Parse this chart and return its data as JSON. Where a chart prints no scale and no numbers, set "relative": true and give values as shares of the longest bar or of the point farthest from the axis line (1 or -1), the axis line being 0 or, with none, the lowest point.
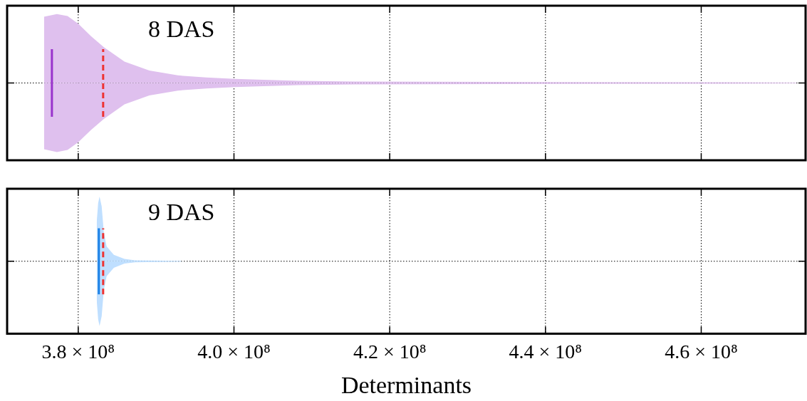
{
  "chart_data": [
    {
      "type": "area",
      "relative": true,
      "annotations": [
        "8 DAS"
      ],
      "tick_labels": false,
      "grid": true,
      "legend": false,
      "xlim": [
        370870000,
        473400000
      ],
      "xticks": [
        380000000,
        400000000,
        420000000,
        440000000,
        460000000
      ],
      "series": [
        {
          "color": "#dfc0ee",
          "x": [
            375600000,
            377260000,
            378630000,
            380000000,
            381640000,
            383290000,
            385940000,
            389130000,
            392790000,
            396440000,
            400090000,
            408310000,
            415620000,
            433880000,
            461280000,
            472240000
          ],
          "values": [
            0.96,
            1,
            0.97,
            0.86,
            0.68,
            0.52,
            0.31,
            0.18,
            0.11,
            0.08,
            0.06,
            0.03,
            0.02,
            0.015,
            0.01,
            0.005
          ]
        },
        {
          "color": "#dfc0ee",
          "x": [
            375600000,
            377260000,
            378630000,
            380000000,
            381640000,
            383290000,
            385940000,
            389130000,
            392790000,
            396440000,
            400090000,
            408310000,
            415620000,
            433880000,
            461280000,
            472240000
          ],
          "values": [
            -0.96,
            -1,
            -0.97,
            -0.86,
            -0.68,
            -0.52,
            -0.31,
            -0.18,
            -0.11,
            -0.08,
            -0.06,
            -0.03,
            -0.02,
            -0.015,
            -0.01,
            -0.005
          ]
        },
        {
          "type": "line",
          "color": "#9933cc",
          "line_style": "solid",
          "x": [
            376620000,
            376620000
          ],
          "values": [
            -0.49,
            0.49
          ]
        },
        {
          "type": "line",
          "color": "#ee3333",
          "line_style": "dashed",
          "x": [
            383200000,
            383200000
          ],
          "values": [
            -0.49,
            0.49
          ]
        }
      ]
    },
    {
      "type": "area",
      "relative": true,
      "annotations": [
        "9 DAS"
      ],
      "tick_labels": "x",
      "grid": true,
      "legend": false,
      "xlabel": "Determinants",
      "xlim": [
        370870000,
        473400000
      ],
      "xticks": [
        {
          "value": 380000000,
          "label": "3.8 × 10⁸"
        },
        {
          "value": 400000000,
          "label": "4.0 × 10⁸"
        },
        {
          "value": 420000000,
          "label": "4.2 × 10⁸"
        },
        {
          "value": 440000000,
          "label": "4.4 × 10⁸"
        },
        {
          "value": 460000000,
          "label": "4.6 × 10⁸"
        }
      ],
      "series": [
        {
          "color": "#bfdfff",
          "x": [
            382370000,
            382560000,
            382740000,
            383010000,
            383290000,
            383650000,
            384570000,
            385940000,
            387310000,
            393240000
          ],
          "values": [
            0.6,
            0.9,
            1,
            0.85,
            0.44,
            0.23,
            0.1,
            0.035,
            0.015,
            0.005
          ]
        },
        {
          "color": "#bfdfff",
          "x": [
            382370000,
            382560000,
            382740000,
            383010000,
            383290000,
            383650000,
            384570000,
            385940000,
            387310000,
            393240000
          ],
          "values": [
            -0.6,
            -0.9,
            -1,
            -0.85,
            -0.44,
            -0.23,
            -0.1,
            -0.035,
            -0.015,
            -0.005
          ]
        },
        {
          "type": "line",
          "color": "#1a80e6",
          "line_style": "solid",
          "x": [
            382650000,
            382650000
          ],
          "values": [
            -0.51,
            0.51
          ]
        },
        {
          "type": "line",
          "color": "#ee3333",
          "line_style": "dashed",
          "x": [
            383200000,
            383200000
          ],
          "values": [
            -0.51,
            0.51
          ]
        }
      ]
    }
  ]
}
